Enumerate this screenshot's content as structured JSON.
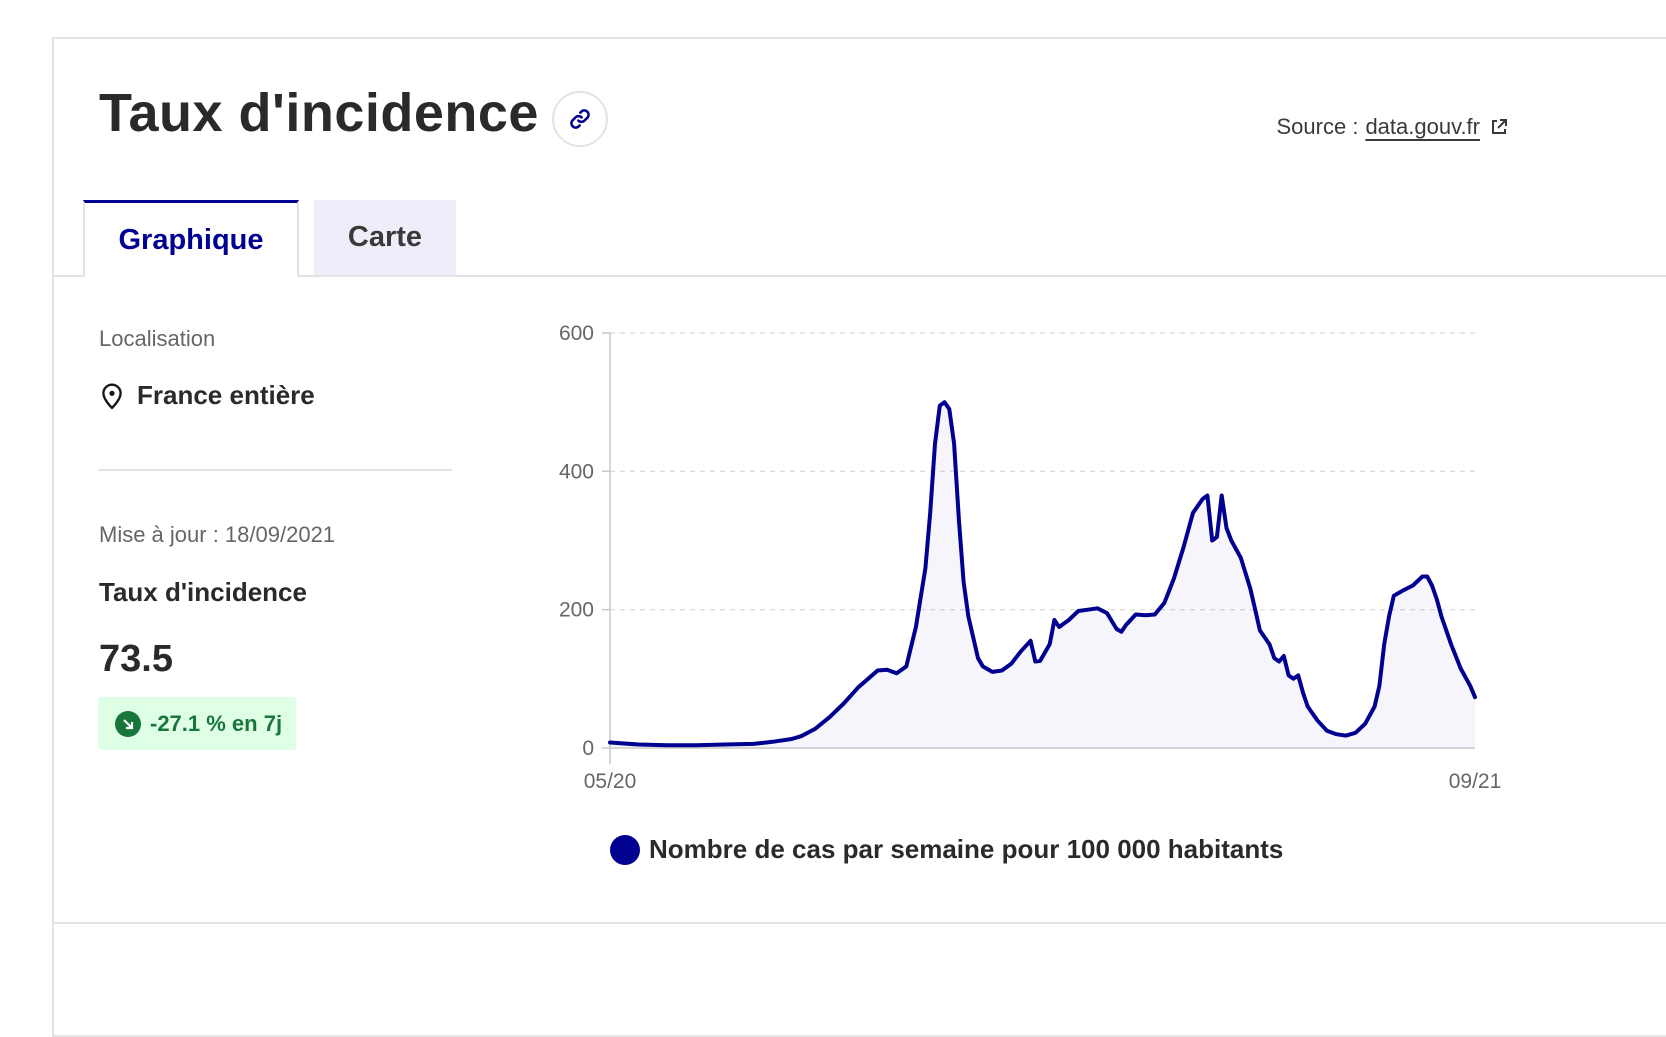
{
  "header": {
    "title": "Taux d'incidence",
    "source_prefix": "Source :",
    "source_link": "data.gouv.fr"
  },
  "tabs": [
    {
      "label": "Graphique",
      "active": true
    },
    {
      "label": "Carte",
      "active": false
    }
  ],
  "sidebar": {
    "location_label": "Localisation",
    "location_value": "France entière",
    "updated": "Mise à jour : 18/09/2021",
    "metric_label": "Taux d'incidence",
    "metric_value": "73.5",
    "trend": "-27.1 % en 7j"
  },
  "colors": {
    "accent": "#000091",
    "trend_green": "#18753c",
    "trend_bg": "#dffee6",
    "inactive_tab_bg": "#eeeefb"
  },
  "chart_data": {
    "type": "line",
    "ylim": [
      0,
      600
    ],
    "yticks": [
      "0",
      "200",
      "400",
      "600"
    ],
    "xticks": [
      "05/20",
      "09/21"
    ],
    "grid": true,
    "legend_position": "bottom",
    "series": [
      {
        "name": "Nombre de cas par semaine pour 100 000 habitants",
        "color": "#000091",
        "points": [
          [
            0,
            8
          ],
          [
            3,
            5
          ],
          [
            6,
            4
          ],
          [
            9,
            4
          ],
          [
            12,
            5
          ],
          [
            15,
            6
          ],
          [
            17,
            9
          ],
          [
            19,
            13
          ],
          [
            20,
            17
          ],
          [
            21.5,
            28
          ],
          [
            23,
            45
          ],
          [
            24.5,
            65
          ],
          [
            26,
            88
          ],
          [
            27,
            100
          ],
          [
            28,
            112
          ],
          [
            29,
            113
          ],
          [
            30,
            108
          ],
          [
            31,
            118
          ],
          [
            32,
            175
          ],
          [
            33,
            260
          ],
          [
            33.5,
            340
          ],
          [
            34,
            440
          ],
          [
            34.5,
            495
          ],
          [
            35,
            500
          ],
          [
            35.5,
            490
          ],
          [
            36,
            440
          ],
          [
            36.5,
            330
          ],
          [
            37,
            240
          ],
          [
            37.5,
            190
          ],
          [
            38,
            160
          ],
          [
            38.5,
            130
          ],
          [
            39,
            118
          ],
          [
            40,
            110
          ],
          [
            41,
            112
          ],
          [
            42,
            122
          ],
          [
            43,
            140
          ],
          [
            44,
            155
          ],
          [
            44.5,
            125
          ],
          [
            45,
            126
          ],
          [
            46,
            150
          ],
          [
            46.5,
            185
          ],
          [
            47,
            175
          ],
          [
            48,
            185
          ],
          [
            49,
            198
          ],
          [
            50,
            200
          ],
          [
            51,
            202
          ],
          [
            52,
            195
          ],
          [
            53,
            172
          ],
          [
            53.5,
            168
          ],
          [
            54,
            178
          ],
          [
            55,
            193
          ],
          [
            56,
            192
          ],
          [
            57,
            193
          ],
          [
            58,
            210
          ],
          [
            59,
            245
          ],
          [
            60,
            290
          ],
          [
            61,
            340
          ],
          [
            62,
            360
          ],
          [
            62.5,
            365
          ],
          [
            63,
            300
          ],
          [
            63.5,
            305
          ],
          [
            64,
            365
          ],
          [
            64.5,
            318
          ],
          [
            65,
            300
          ],
          [
            66,
            275
          ],
          [
            67,
            230
          ],
          [
            67.5,
            200
          ],
          [
            68,
            170
          ],
          [
            69,
            150
          ],
          [
            69.5,
            130
          ],
          [
            70,
            125
          ],
          [
            70.5,
            133
          ],
          [
            71,
            105
          ],
          [
            71.5,
            100
          ],
          [
            72,
            105
          ],
          [
            72.5,
            80
          ],
          [
            73,
            60
          ],
          [
            74,
            40
          ],
          [
            75,
            25
          ],
          [
            76,
            20
          ],
          [
            77,
            18
          ],
          [
            78,
            22
          ],
          [
            79,
            35
          ],
          [
            80,
            60
          ],
          [
            80.5,
            90
          ],
          [
            81,
            150
          ],
          [
            81.5,
            190
          ],
          [
            82,
            220
          ],
          [
            83,
            228
          ],
          [
            84,
            235
          ],
          [
            85,
            248
          ],
          [
            85.5,
            248
          ],
          [
            86,
            235
          ],
          [
            86.5,
            215
          ],
          [
            87,
            190
          ],
          [
            88,
            150
          ],
          [
            89,
            115
          ],
          [
            90,
            90
          ],
          [
            90.5,
            73.5
          ]
        ]
      }
    ]
  }
}
